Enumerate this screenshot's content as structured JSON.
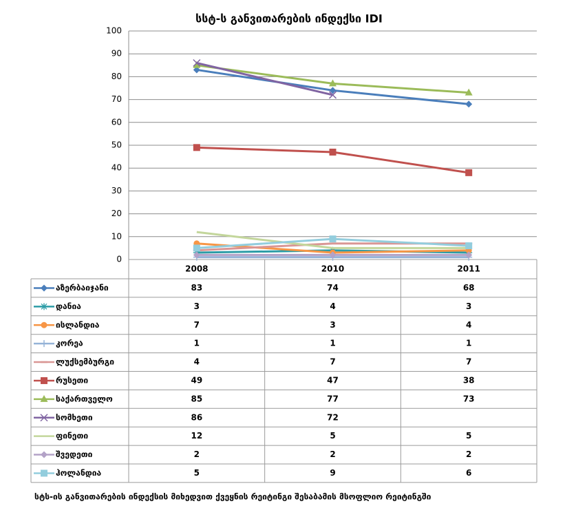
{
  "chart_data": {
    "type": "line",
    "title": "სსტ-ს განვითარების ინდექსი IDI",
    "caption": "სტს-ის განვითარების ინდექსის მიხედვით ქვეყნის რეიტინგი შესაბამის მსოფლიო რეიტინგში",
    "categories": [
      "2008",
      "2010",
      "2011"
    ],
    "ylim": [
      0,
      100
    ],
    "yticks": [
      0,
      10,
      20,
      30,
      40,
      50,
      60,
      70,
      80,
      90,
      100
    ],
    "grid": true,
    "series": [
      {
        "name": "აზერბაიჯანი",
        "color": "#4a7ebb",
        "marker": "diamond",
        "values": [
          83,
          74,
          68
        ]
      },
      {
        "name": "დანია",
        "color": "#2c9ca6",
        "marker": "star",
        "values": [
          3,
          4,
          3
        ]
      },
      {
        "name": "ისლანდია",
        "color": "#f79646",
        "marker": "circle",
        "values": [
          7,
          3,
          4
        ]
      },
      {
        "name": "კორეა",
        "color": "#95b3d7",
        "marker": "plus",
        "values": [
          1,
          1,
          1
        ]
      },
      {
        "name": "ლუქსემბურგი",
        "color": "#d99694",
        "marker": "dash",
        "values": [
          4,
          7,
          7
        ]
      },
      {
        "name": "რუსეთი",
        "color": "#c0504d",
        "marker": "square",
        "values": [
          49,
          47,
          38
        ]
      },
      {
        "name": "საქართველო",
        "color": "#9bbb59",
        "marker": "triangle",
        "values": [
          85,
          77,
          73
        ]
      },
      {
        "name": "სომხეთი",
        "color": "#8064a2",
        "marker": "x",
        "values": [
          86,
          72,
          null
        ]
      },
      {
        "name": "ფინეთი",
        "color": "#c3d69b",
        "marker": "none",
        "values": [
          12,
          5,
          5
        ]
      },
      {
        "name": "შვედეთი",
        "color": "#b3a2c7",
        "marker": "diamond",
        "values": [
          2,
          2,
          2
        ]
      },
      {
        "name": "ჰოლანდია",
        "color": "#93cddd",
        "marker": "square",
        "values": [
          5,
          9,
          6
        ]
      }
    ]
  }
}
